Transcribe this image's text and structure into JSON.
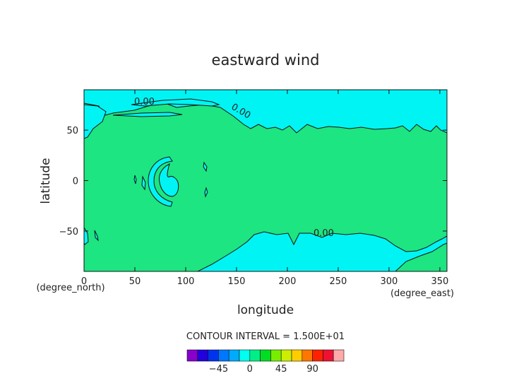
{
  "chart_data": {
    "type": "heatmap",
    "title": "eastward wind",
    "xlabel": "longitude",
    "ylabel": "latitude",
    "x_unit": "(degree_east)",
    "y_unit": "(degree_north)",
    "xlim": [
      0,
      357
    ],
    "ylim": [
      -90,
      90
    ],
    "x_ticks": [
      "0",
      "50",
      "100",
      "150",
      "200",
      "250",
      "300",
      "350"
    ],
    "y_ticks": [
      "50",
      "0",
      "−50"
    ],
    "contour_labels": [
      "0.00",
      "0.00",
      "0.00"
    ],
    "contour_interval_text": "CONTOUR INTERVAL = 1.500E+01",
    "colorbar": {
      "tick_labels": [
        "−45",
        "0",
        "45",
        "90"
      ],
      "colors": [
        "#8800cc",
        "#2200dd",
        "#0033ee",
        "#0077ff",
        "#00aaff",
        "#00ffee",
        "#00ee88",
        "#00dd22",
        "#77ee00",
        "#ccee00",
        "#ffcc00",
        "#ff7700",
        "#ff2200",
        "#ee1133",
        "#ffaaaa"
      ]
    },
    "colors": {
      "background": "#1de582",
      "negative": "#00f4f4",
      "contour": "#111111"
    }
  }
}
